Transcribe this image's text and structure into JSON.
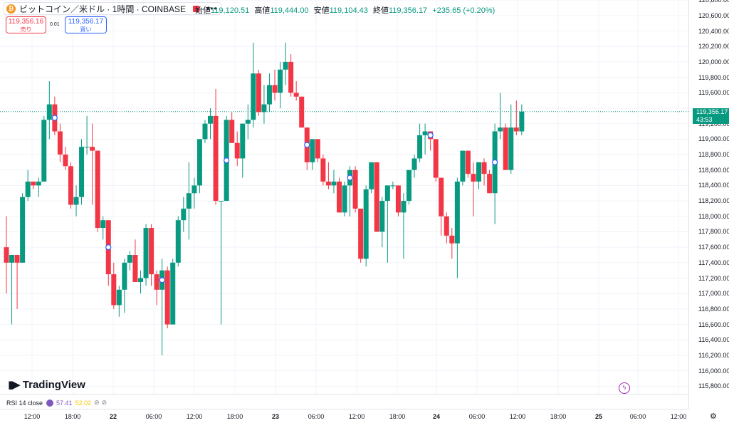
{
  "header": {
    "symbol": "ビットコイン／米ドル · 1時間 · COINBASE",
    "coin_glyph": "₿",
    "more_glyph": "•••"
  },
  "ohlc": {
    "open_label": "始値",
    "open": "119,120.51",
    "high_label": "高値",
    "high": "119,444.00",
    "low_label": "安値",
    "low": "119,104.43",
    "close_label": "終値",
    "close": "119,356.17",
    "change": "+235.65 (+0.20%)"
  },
  "trade": {
    "sell_price": "119,356.16",
    "sell_label": "売り",
    "spread": "0.01",
    "buy_price": "119,356.17",
    "buy_label": "買い"
  },
  "price_axis": {
    "ticks": [
      "120,800.00",
      "120,600.00",
      "120,400.00",
      "120,200.00",
      "120,000.00",
      "119,800.00",
      "119,600.00",
      "119,200.00",
      "119,000.00",
      "118,800.00",
      "118,600.00",
      "118,400.00",
      "118,200.00",
      "118,000.00",
      "117,800.00",
      "117,600.00",
      "117,400.00",
      "117,200.00",
      "117,000.00",
      "116,800.00",
      "116,600.00",
      "116,400.00",
      "116,200.00",
      "116,000.00",
      "115,800.00"
    ],
    "current_price": "119,356.17",
    "countdown": "43:53"
  },
  "time_axis": {
    "labels": [
      {
        "text": "12:00",
        "bold": false
      },
      {
        "text": "18:00",
        "bold": false
      },
      {
        "text": "22",
        "bold": true
      },
      {
        "text": "06:00",
        "bold": false
      },
      {
        "text": "12:00",
        "bold": false
      },
      {
        "text": "18:00",
        "bold": false
      },
      {
        "text": "23",
        "bold": true
      },
      {
        "text": "06:00",
        "bold": false
      },
      {
        "text": "12:00",
        "bold": false
      },
      {
        "text": "18:00",
        "bold": false
      },
      {
        "text": "24",
        "bold": true
      },
      {
        "text": "06:00",
        "bold": false
      },
      {
        "text": "12:00",
        "bold": false
      },
      {
        "text": "18:00",
        "bold": false
      },
      {
        "text": "25",
        "bold": true
      },
      {
        "text": "06:00",
        "bold": false
      },
      {
        "text": "12:00",
        "bold": false
      }
    ]
  },
  "indicator": {
    "name": "RSI 14 close",
    "value1": "57.41",
    "value2": "52.02"
  },
  "branding": {
    "logo_text": "TradingView"
  },
  "colors": {
    "up": "#089981",
    "down": "#f23645",
    "grid": "#f0f3fa",
    "rsi": "#7e57c2"
  },
  "chart_data": {
    "type": "candlestick",
    "interval": "1時間",
    "ylim": [
      115800,
      120800
    ],
    "candles": [
      {
        "o": 117600,
        "h": 118000,
        "l": 117000,
        "c": 117400
      },
      {
        "o": 117400,
        "h": 117500,
        "l": 116600,
        "c": 117500
      },
      {
        "o": 117500,
        "h": 117500,
        "l": 116800,
        "c": 117400
      },
      {
        "o": 117400,
        "h": 118300,
        "l": 117400,
        "c": 118250
      },
      {
        "o": 118250,
        "h": 118600,
        "l": 118200,
        "c": 118450
      },
      {
        "o": 118450,
        "h": 118450,
        "l": 118350,
        "c": 118400
      },
      {
        "o": 118400,
        "h": 118500,
        "l": 118250,
        "c": 118450
      },
      {
        "o": 118450,
        "h": 119300,
        "l": 118450,
        "c": 119250
      },
      {
        "o": 119250,
        "h": 119750,
        "l": 119000,
        "c": 119450
      },
      {
        "o": 119450,
        "h": 119550,
        "l": 119050,
        "c": 119100
      },
      {
        "o": 119100,
        "h": 119200,
        "l": 118700,
        "c": 118800
      },
      {
        "o": 118800,
        "h": 118900,
        "l": 118600,
        "c": 118650
      },
      {
        "o": 118650,
        "h": 118700,
        "l": 118100,
        "c": 118150
      },
      {
        "o": 118150,
        "h": 118400,
        "l": 118000,
        "c": 118250
      },
      {
        "o": 118250,
        "h": 119000,
        "l": 118150,
        "c": 118900
      },
      {
        "o": 118900,
        "h": 119300,
        "l": 118800,
        "c": 118900
      },
      {
        "o": 118900,
        "h": 119200,
        "l": 118150,
        "c": 118850
      },
      {
        "o": 118850,
        "h": 118850,
        "l": 117800,
        "c": 117850
      },
      {
        "o": 117850,
        "h": 118000,
        "l": 117700,
        "c": 117950
      },
      {
        "o": 117950,
        "h": 117950,
        "l": 117100,
        "c": 117250
      },
      {
        "o": 117250,
        "h": 117400,
        "l": 116800,
        "c": 116850
      },
      {
        "o": 116850,
        "h": 117100,
        "l": 116700,
        "c": 117050
      },
      {
        "o": 117050,
        "h": 117450,
        "l": 116750,
        "c": 117400
      },
      {
        "o": 117400,
        "h": 117550,
        "l": 117300,
        "c": 117500
      },
      {
        "o": 117500,
        "h": 117700,
        "l": 117150,
        "c": 117150
      },
      {
        "o": 117150,
        "h": 117300,
        "l": 117000,
        "c": 117200
      },
      {
        "o": 117200,
        "h": 117900,
        "l": 117100,
        "c": 117850
      },
      {
        "o": 117850,
        "h": 117900,
        "l": 117100,
        "c": 117250
      },
      {
        "o": 117250,
        "h": 117300,
        "l": 116850,
        "c": 117050
      },
      {
        "o": 117050,
        "h": 117450,
        "l": 116200,
        "c": 117300
      },
      {
        "o": 117300,
        "h": 117350,
        "l": 116550,
        "c": 116600
      },
      {
        "o": 116600,
        "h": 117450,
        "l": 116600,
        "c": 117400
      },
      {
        "o": 117400,
        "h": 118000,
        "l": 117350,
        "c": 117950
      },
      {
        "o": 117950,
        "h": 118250,
        "l": 117800,
        "c": 118100
      },
      {
        "o": 118100,
        "h": 118700,
        "l": 117700,
        "c": 118300
      },
      {
        "o": 118300,
        "h": 118500,
        "l": 118100,
        "c": 118400
      },
      {
        "o": 118400,
        "h": 119000,
        "l": 118300,
        "c": 119000
      },
      {
        "o": 119000,
        "h": 119250,
        "l": 118950,
        "c": 119200
      },
      {
        "o": 119200,
        "h": 119400,
        "l": 119000,
        "c": 119300
      },
      {
        "o": 119300,
        "h": 119650,
        "l": 118150,
        "c": 118200
      },
      {
        "o": 118200,
        "h": 118200,
        "l": 116600,
        "c": 118200
      },
      {
        "o": 118200,
        "h": 119300,
        "l": 118200,
        "c": 119250
      },
      {
        "o": 119250,
        "h": 119350,
        "l": 118950,
        "c": 118950
      },
      {
        "o": 118950,
        "h": 119100,
        "l": 118650,
        "c": 118750
      },
      {
        "o": 118750,
        "h": 119200,
        "l": 118500,
        "c": 119200
      },
      {
        "o": 119200,
        "h": 119450,
        "l": 119000,
        "c": 119250
      },
      {
        "o": 119250,
        "h": 120250,
        "l": 119150,
        "c": 119850
      },
      {
        "o": 119850,
        "h": 119900,
        "l": 119300,
        "c": 119350
      },
      {
        "o": 119350,
        "h": 119700,
        "l": 119200,
        "c": 119450
      },
      {
        "o": 119450,
        "h": 119850,
        "l": 119350,
        "c": 119700
      },
      {
        "o": 119700,
        "h": 119900,
        "l": 119500,
        "c": 119600
      },
      {
        "o": 119600,
        "h": 120000,
        "l": 119400,
        "c": 119900
      },
      {
        "o": 119900,
        "h": 120250,
        "l": 119700,
        "c": 120000
      },
      {
        "o": 120000,
        "h": 120100,
        "l": 119550,
        "c": 119600
      },
      {
        "o": 119600,
        "h": 119750,
        "l": 119500,
        "c": 119550
      },
      {
        "o": 119550,
        "h": 119550,
        "l": 119150,
        "c": 119150
      },
      {
        "o": 119150,
        "h": 119150,
        "l": 118600,
        "c": 118700
      },
      {
        "o": 118700,
        "h": 119000,
        "l": 118600,
        "c": 119000
      },
      {
        "o": 119000,
        "h": 119000,
        "l": 118700,
        "c": 118750
      },
      {
        "o": 118750,
        "h": 118800,
        "l": 118400,
        "c": 118450
      },
      {
        "o": 118450,
        "h": 118700,
        "l": 118350,
        "c": 118400
      },
      {
        "o": 118400,
        "h": 118600,
        "l": 118300,
        "c": 118450
      },
      {
        "o": 118450,
        "h": 118500,
        "l": 118050,
        "c": 118050
      },
      {
        "o": 118050,
        "h": 118450,
        "l": 118000,
        "c": 118400
      },
      {
        "o": 118400,
        "h": 118650,
        "l": 118000,
        "c": 118600
      },
      {
        "o": 118600,
        "h": 118650,
        "l": 118050,
        "c": 118100
      },
      {
        "o": 118100,
        "h": 118100,
        "l": 117400,
        "c": 117450
      },
      {
        "o": 117450,
        "h": 118400,
        "l": 117350,
        "c": 118350
      },
      {
        "o": 118350,
        "h": 118700,
        "l": 118300,
        "c": 118700
      },
      {
        "o": 118700,
        "h": 118700,
        "l": 117800,
        "c": 117800
      },
      {
        "o": 117800,
        "h": 118250,
        "l": 117600,
        "c": 118200
      },
      {
        "o": 118200,
        "h": 118400,
        "l": 117400,
        "c": 118400
      },
      {
        "o": 118400,
        "h": 118450,
        "l": 118350,
        "c": 118400
      },
      {
        "o": 118400,
        "h": 118400,
        "l": 118000,
        "c": 118050
      },
      {
        "o": 118050,
        "h": 118300,
        "l": 117450,
        "c": 118200
      },
      {
        "o": 118200,
        "h": 118600,
        "l": 118150,
        "c": 118600
      },
      {
        "o": 118600,
        "h": 118800,
        "l": 118500,
        "c": 118750
      },
      {
        "o": 118750,
        "h": 119200,
        "l": 118700,
        "c": 119050
      },
      {
        "o": 119050,
        "h": 119200,
        "l": 118800,
        "c": 119100
      },
      {
        "o": 119100,
        "h": 119100,
        "l": 118850,
        "c": 119000
      },
      {
        "o": 119000,
        "h": 119000,
        "l": 118450,
        "c": 118500
      },
      {
        "o": 118500,
        "h": 118500,
        "l": 117750,
        "c": 118000
      },
      {
        "o": 118000,
        "h": 118050,
        "l": 117650,
        "c": 117750
      },
      {
        "o": 117750,
        "h": 117850,
        "l": 117450,
        "c": 117650
      },
      {
        "o": 117650,
        "h": 118500,
        "l": 117200,
        "c": 118450
      },
      {
        "o": 118450,
        "h": 118850,
        "l": 118400,
        "c": 118850
      },
      {
        "o": 118850,
        "h": 118850,
        "l": 118500,
        "c": 118550
      },
      {
        "o": 118550,
        "h": 118700,
        "l": 118000,
        "c": 118450
      },
      {
        "o": 118450,
        "h": 118700,
        "l": 118350,
        "c": 118700
      },
      {
        "o": 118700,
        "h": 118750,
        "l": 118400,
        "c": 118550
      },
      {
        "o": 118550,
        "h": 118600,
        "l": 118300,
        "c": 118300
      },
      {
        "o": 118300,
        "h": 119200,
        "l": 117900,
        "c": 119100
      },
      {
        "o": 119100,
        "h": 119600,
        "l": 119000,
        "c": 119150
      },
      {
        "o": 119150,
        "h": 119200,
        "l": 118600,
        "c": 118600
      },
      {
        "o": 118600,
        "h": 119450,
        "l": 118550,
        "c": 119150
      },
      {
        "o": 119150,
        "h": 119500,
        "l": 119050,
        "c": 119100
      },
      {
        "o": 119100,
        "h": 119450,
        "l": 119050,
        "c": 119356
      }
    ],
    "markers": [
      9,
      19,
      29,
      41,
      56,
      64,
      79,
      91
    ]
  }
}
